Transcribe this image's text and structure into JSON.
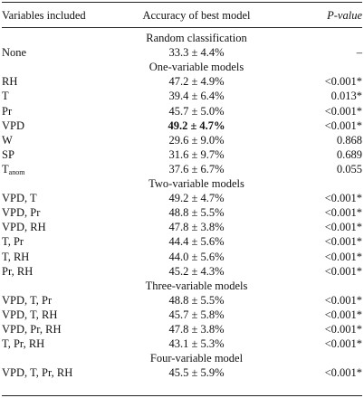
{
  "header": {
    "variables": "Variables included",
    "accuracy": "Accuracy of best model",
    "pvalue": "P-value"
  },
  "groups": [
    {
      "title": "Random classification",
      "rows": [
        {
          "var": "None",
          "acc": "33.3 ± 4.4%",
          "p": "–"
        }
      ]
    },
    {
      "title": "One-variable models",
      "rows": [
        {
          "var": "RH",
          "acc": "47.2 ± 4.9%",
          "p": "<0.001*"
        },
        {
          "var": "T",
          "acc": "39.4 ± 6.4%",
          "p": "0.013*"
        },
        {
          "var": "Pr",
          "acc": "45.7 ± 5.0%",
          "p": "<0.001*"
        },
        {
          "var": "VPD",
          "acc": "49.2 ± 4.7%",
          "p": "<0.001*",
          "bold": true
        },
        {
          "var": "W",
          "acc": "29.6 ± 9.0%",
          "p": "0.868"
        },
        {
          "var": "SP",
          "acc": "31.6 ± 9.7%",
          "p": "0.689"
        },
        {
          "var": "T",
          "var_sub": "anom",
          "acc": "37.6 ± 6.7%",
          "p": "0.055"
        }
      ]
    },
    {
      "title": "Two-variable models",
      "rows": [
        {
          "var": "VPD, T",
          "acc": "49.2 ± 4.7%",
          "p": "<0.001*"
        },
        {
          "var": "VPD, Pr",
          "acc": "48.8 ± 5.5%",
          "p": "<0.001*"
        },
        {
          "var": "VPD, RH",
          "acc": "47.8 ± 3.8%",
          "p": "<0.001*"
        },
        {
          "var": "T, Pr",
          "acc": "44.4 ± 5.6%",
          "p": "<0.001*"
        },
        {
          "var": "T, RH",
          "acc": "44.0 ± 5.6%",
          "p": "<0.001*"
        },
        {
          "var": "Pr, RH",
          "acc": "45.2 ± 4.3%",
          "p": "<0.001*"
        }
      ]
    },
    {
      "title": "Three-variable models",
      "rows": [
        {
          "var": "VPD, T, Pr",
          "acc": "48.8 ± 5.5%",
          "p": "<0.001*"
        },
        {
          "var": "VPD, T, RH",
          "acc": "45.7 ± 5.8%",
          "p": "<0.001*"
        },
        {
          "var": "VPD, Pr, RH",
          "acc": "47.8 ± 3.8%",
          "p": "<0.001*"
        },
        {
          "var": "T, Pr, RH",
          "acc": "43.1 ± 5.3%",
          "p": "<0.001*"
        }
      ]
    },
    {
      "title": "Four-variable model",
      "rows": [
        {
          "var": "VPD, T, Pr, RH",
          "acc": "45.5 ± 5.9%",
          "p": "<0.001*"
        }
      ]
    }
  ]
}
